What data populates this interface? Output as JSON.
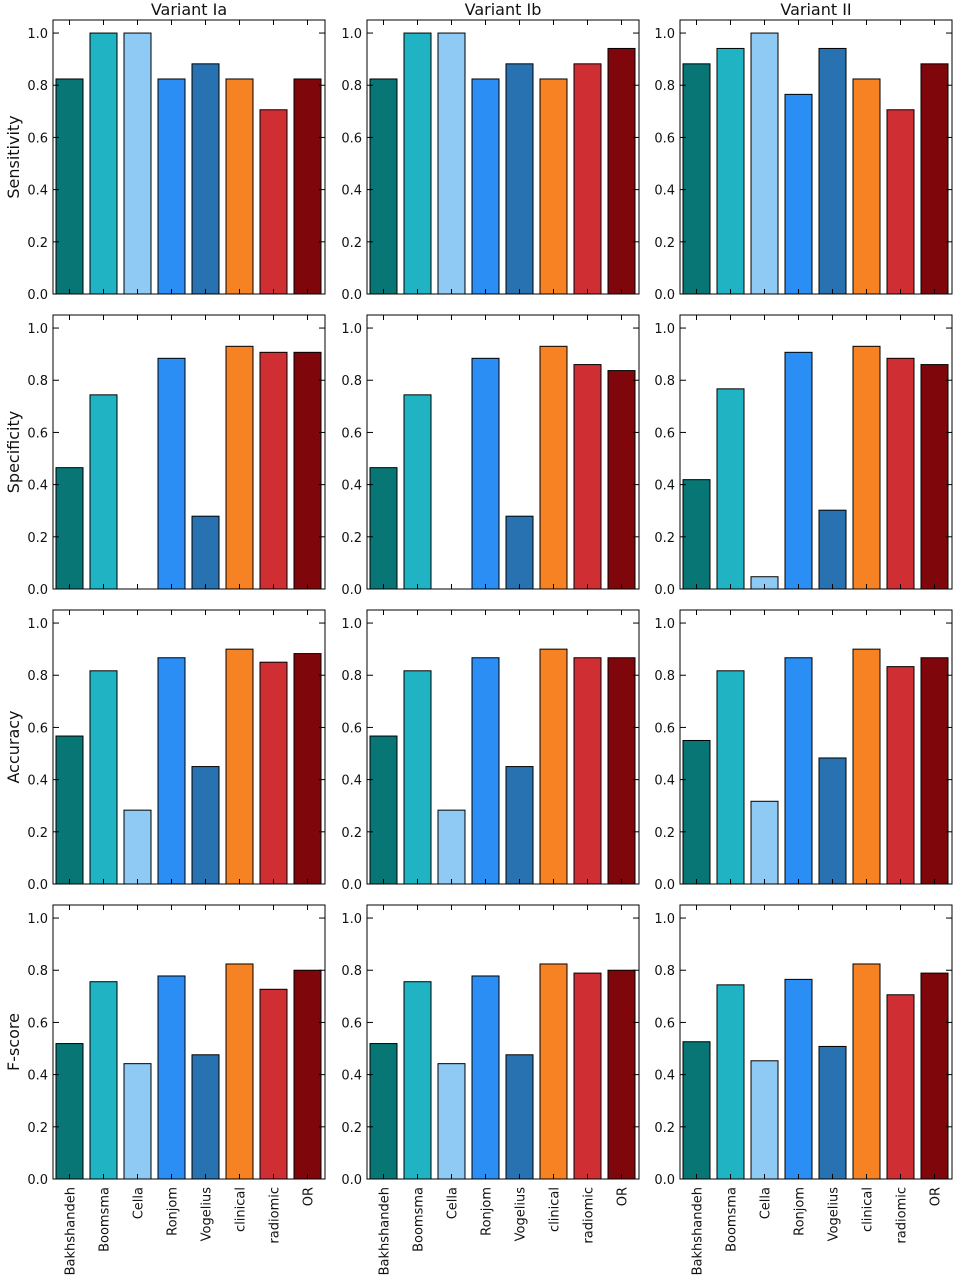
{
  "chart_data": {
    "type": "bar",
    "layout": "grid",
    "columns": [
      "Variant Ia",
      "Variant Ib",
      "Variant II"
    ],
    "rows": [
      "Sensitivity",
      "Specificity",
      "Accuracy",
      "F-score"
    ],
    "categories": [
      "Bakhshandeh",
      "Boomsma",
      "Cella",
      "Ronjom",
      "Vogelius",
      "clinical",
      "radiomic",
      "OR"
    ],
    "colors": [
      "#077674",
      "#20b3c3",
      "#8ecaf3",
      "#2a8ef4",
      "#2872b1",
      "#f68223",
      "#cf2f33",
      "#7f070b"
    ],
    "ylim": [
      0,
      1.05
    ],
    "yticks": [
      "0.0",
      "0.2",
      "0.4",
      "0.6",
      "0.8",
      "1.0"
    ],
    "panels": [
      {
        "column": "Variant Ia",
        "row": "Sensitivity",
        "values": [
          0.824,
          1.0,
          1.0,
          0.824,
          0.882,
          0.824,
          0.706,
          0.824
        ]
      },
      {
        "column": "Variant Ib",
        "row": "Sensitivity",
        "values": [
          0.824,
          1.0,
          1.0,
          0.824,
          0.882,
          0.824,
          0.882,
          0.941
        ]
      },
      {
        "column": "Variant II",
        "row": "Sensitivity",
        "values": [
          0.882,
          0.941,
          1.0,
          0.765,
          0.941,
          0.824,
          0.706,
          0.882
        ]
      },
      {
        "column": "Variant Ia",
        "row": "Specificity",
        "values": [
          0.465,
          0.744,
          0.0,
          0.884,
          0.279,
          0.93,
          0.907,
          0.907
        ]
      },
      {
        "column": "Variant Ib",
        "row": "Specificity",
        "values": [
          0.465,
          0.744,
          0.0,
          0.884,
          0.279,
          0.93,
          0.86,
          0.837
        ]
      },
      {
        "column": "Variant II",
        "row": "Specificity",
        "values": [
          0.419,
          0.767,
          0.047,
          0.907,
          0.302,
          0.93,
          0.884,
          0.86
        ]
      },
      {
        "column": "Variant Ia",
        "row": "Accuracy",
        "values": [
          0.567,
          0.817,
          0.283,
          0.867,
          0.45,
          0.9,
          0.85,
          0.883
        ]
      },
      {
        "column": "Variant Ib",
        "row": "Accuracy",
        "values": [
          0.567,
          0.817,
          0.283,
          0.867,
          0.45,
          0.9,
          0.867,
          0.867
        ]
      },
      {
        "column": "Variant II",
        "row": "Accuracy",
        "values": [
          0.55,
          0.817,
          0.317,
          0.867,
          0.483,
          0.9,
          0.833,
          0.867
        ]
      },
      {
        "column": "Variant Ia",
        "row": "F-score",
        "values": [
          0.519,
          0.756,
          0.442,
          0.778,
          0.476,
          0.824,
          0.727,
          0.8
        ]
      },
      {
        "column": "Variant Ib",
        "row": "F-score",
        "values": [
          0.519,
          0.756,
          0.442,
          0.778,
          0.476,
          0.824,
          0.789,
          0.8
        ]
      },
      {
        "column": "Variant II",
        "row": "F-score",
        "values": [
          0.526,
          0.744,
          0.453,
          0.765,
          0.508,
          0.824,
          0.706,
          0.789
        ]
      }
    ]
  }
}
